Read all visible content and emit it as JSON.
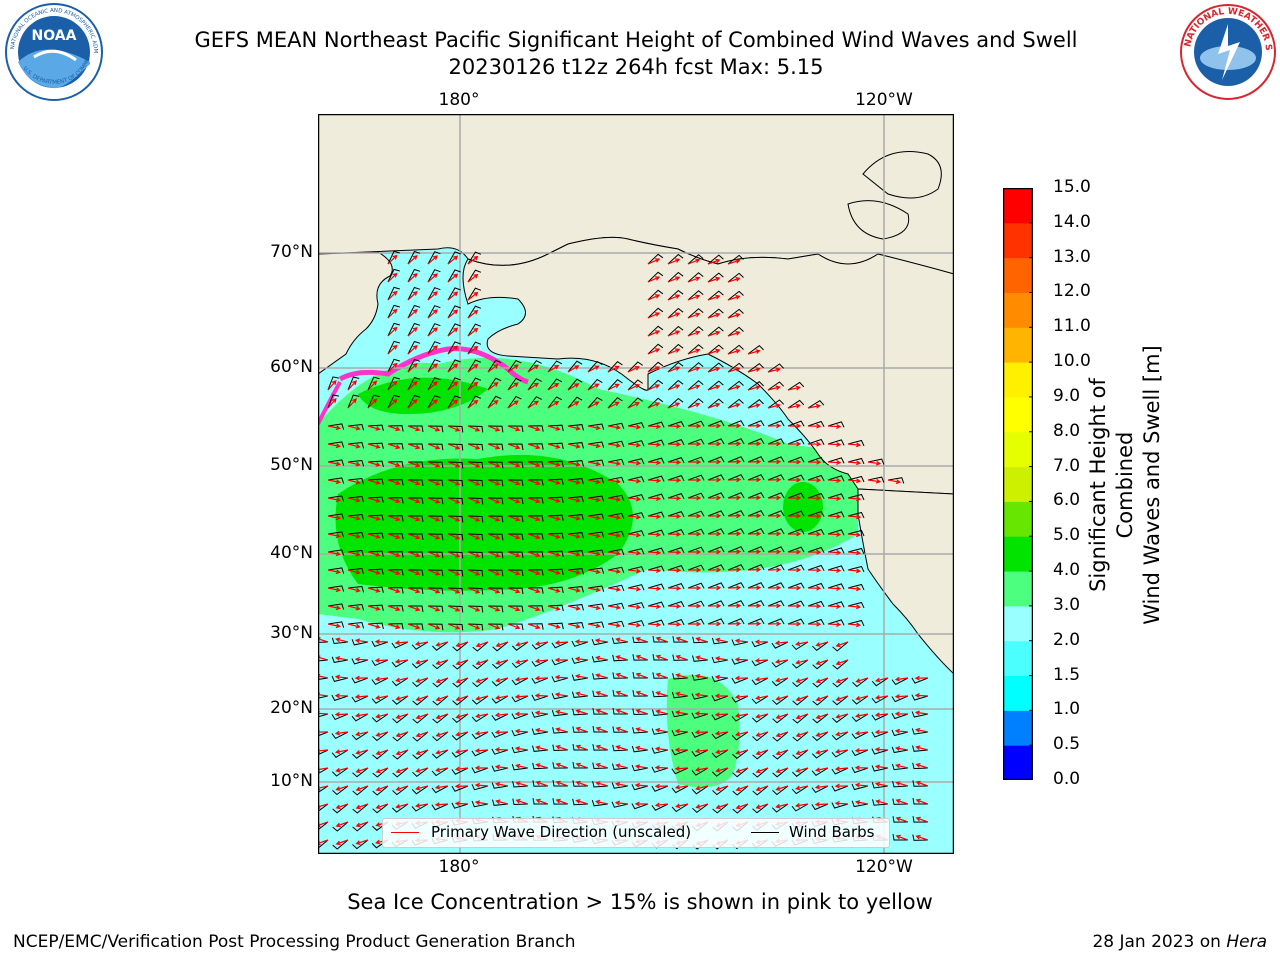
{
  "title": {
    "line1": "GEFS MEAN Northeast Pacific Significant Height of Combined Wind Waves and Swell",
    "line2": "20230126 t12z 264h fcst   Max: 5.15"
  },
  "logos": {
    "left": {
      "name": "NOAA",
      "ring_text": "NATIONAL OCEANIC AND ATMOSPHERIC ADMINISTRATION",
      "bottom_text": "U.S. DEPARTMENT OF COMMERCE",
      "color": "#1b5fa8"
    },
    "right": {
      "name": "NATIONAL WEATHER SERVICE",
      "color": "#d8262f"
    }
  },
  "map": {
    "top_ticks": [
      "180°",
      "120°W"
    ],
    "bottom_ticks": [
      "180°",
      "120°W"
    ],
    "lat_ticks": [
      "70°N",
      "60°N",
      "50°N",
      "40°N",
      "30°N",
      "20°N",
      "10°N"
    ],
    "land_color": "#efecdc",
    "ocean_colors": {
      "low": "#99ffff",
      "mid": "#4cff7f",
      "high": "#00e400"
    },
    "ice_color": "#ff33cc",
    "arrow_color": "#ff0000",
    "barb_color": "#000000",
    "max_value": 5.15
  },
  "legend": {
    "wave_label": "Primary Wave Direction (unscaled)",
    "barb_label": "Wind Barbs"
  },
  "colorbar": {
    "label_line1": "Significant Height of Combined",
    "label_line2": "Wind Waves and Swell [m]",
    "ticks": [
      "15.0",
      "14.0",
      "13.0",
      "12.0",
      "11.0",
      "10.0",
      "9.0",
      "8.0",
      "7.0",
      "6.0",
      "5.0",
      "4.0",
      "3.0",
      "2.0",
      "1.5",
      "1.0",
      "0.5",
      "0.0"
    ],
    "levels": [
      0.0,
      0.5,
      1.0,
      1.5,
      2.0,
      3.0,
      4.0,
      5.0,
      6.0,
      7.0,
      8.0,
      9.0,
      10.0,
      11.0,
      12.0,
      13.0,
      14.0,
      15.0
    ],
    "colors": [
      "#0000ff",
      "#0080ff",
      "#00ffff",
      "#4cffff",
      "#99ffff",
      "#4cff7f",
      "#00e400",
      "#66e600",
      "#ccf000",
      "#e6ff00",
      "#ffff00",
      "#fff000",
      "#ffb400",
      "#ff8c00",
      "#ff6400",
      "#ff3200",
      "#ff0000"
    ]
  },
  "note": "Sea Ice Concentration > 15% is shown in pink to yellow",
  "footer": {
    "left": "NCEP/EMC/Verification Post Processing Product Generation Branch",
    "right_date": "28 Jan 2023 on ",
    "right_host": "Hera"
  }
}
